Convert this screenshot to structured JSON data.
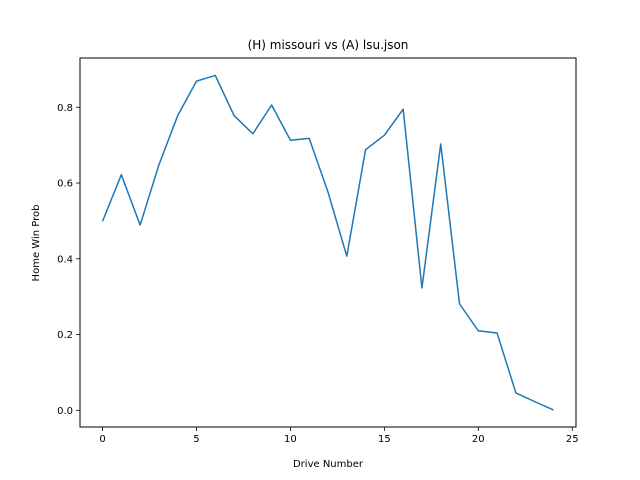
{
  "chart_data": {
    "type": "line",
    "title": "(H) missouri vs (A) lsu.json",
    "xlabel": "Drive Number",
    "ylabel": "Home Win Prob",
    "xlim": [
      -1.2,
      25.2
    ],
    "ylim": [
      -0.044,
      0.93
    ],
    "xticks": [
      0,
      5,
      10,
      15,
      20,
      25
    ],
    "yticks": [
      0.0,
      0.2,
      0.4,
      0.6,
      0.8
    ],
    "ytick_labels": [
      "0.0",
      "0.2",
      "0.4",
      "0.6",
      "0.8"
    ],
    "grid": false,
    "series": [
      {
        "color": "#1f77b4",
        "x": [
          0,
          1,
          2,
          3,
          4,
          5,
          6,
          7,
          8,
          9,
          10,
          11,
          12,
          13,
          14,
          15,
          16,
          17,
          18,
          19,
          20,
          21,
          22,
          23,
          24
        ],
        "y": [
          0.499,
          0.622,
          0.489,
          0.648,
          0.778,
          0.869,
          0.884,
          0.778,
          0.73,
          0.806,
          0.713,
          0.718,
          0.576,
          0.407,
          0.688,
          0.726,
          0.795,
          0.323,
          0.703,
          0.281,
          0.21,
          0.204,
          0.046,
          0.023,
          0.001
        ]
      }
    ]
  }
}
